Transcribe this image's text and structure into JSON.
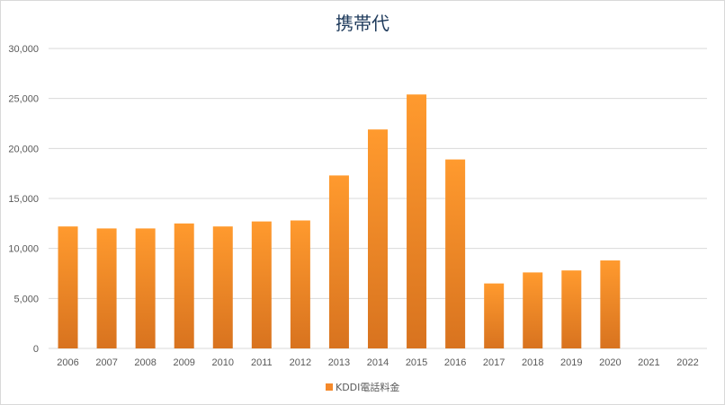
{
  "chart_data": {
    "type": "bar",
    "title": "携帯代",
    "xlabel": "",
    "ylabel": "",
    "ylim": [
      0,
      30000
    ],
    "yticks": [
      0,
      5000,
      10000,
      15000,
      20000,
      25000,
      30000
    ],
    "ytick_labels": [
      "0",
      "5,000",
      "10,000",
      "15,000",
      "20,000",
      "25,000",
      "30,000"
    ],
    "grid": true,
    "legend_position": "bottom",
    "categories": [
      "2006",
      "2007",
      "2008",
      "2009",
      "2010",
      "2011",
      "2012",
      "2013",
      "2014",
      "2015",
      "2016",
      "2017",
      "2018",
      "2019",
      "2020",
      "2021",
      "2022"
    ],
    "series": [
      {
        "name": "KDDI電話料金",
        "values": [
          12200,
          12000,
          12000,
          12500,
          12200,
          12700,
          12800,
          17300,
          21900,
          25400,
          18900,
          6500,
          7600,
          7800,
          8800,
          null,
          null
        ],
        "color_top": "#ff9a2e",
        "color_bottom": "#d8731f",
        "legend_color": "#f5892a"
      }
    ],
    "colors": {
      "grid": "#d9d9d9",
      "axis": "#d9d9d9",
      "title": "#1f3b5c",
      "text": "#595959"
    }
  }
}
